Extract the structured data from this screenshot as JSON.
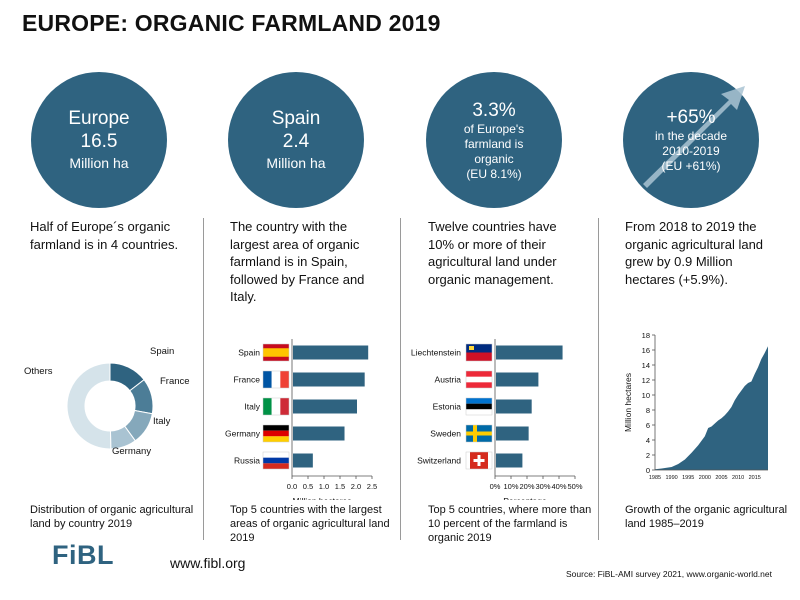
{
  "title": "EUROPE: ORGANIC FARMLAND 2019",
  "colors": {
    "circle": "#2f6380",
    "bar": "#2f6380",
    "pie": [
      "#2f6380",
      "#4c7d97",
      "#85a8bb",
      "#a9c3d2",
      "#d5e3ea"
    ]
  },
  "circles": {
    "europe": {
      "line1": "Europe",
      "line2": "16.5",
      "line3": "Million ha"
    },
    "spain": {
      "line1": "Spain",
      "line2": "2.4",
      "line3": "Million ha"
    },
    "share": {
      "line1": "3.3%",
      "line2": "of Europe's",
      "line3": "farmland is",
      "line4": "organic",
      "line5": "(EU 8.1%)"
    },
    "growth": {
      "line1": "+65%",
      "line2": "in the decade",
      "line3": "2010-2019",
      "line4": "(EU +61%)"
    }
  },
  "descriptions": {
    "col1": "Half of Europe´s organic farmland is in 4 countries.",
    "col2": "The country with the largest area of organic farmland is in Spain, followed by France and Italy.",
    "col3": "Twelve countries have 10% or more of their agricultural land under organic management.",
    "col4": "From 2018 to 2019 the organic agricultural land grew by 0.9 Million hectares (+5.9%)."
  },
  "footnotes": {
    "col1": "Distribution of organic agricultural land by country 2019",
    "col2": "Top 5 countries with the largest areas of organic agricultural land 2019",
    "col3": "Top 5 countries, where more than 10 percent of the farmland is organic 2019",
    "col4": "Growth of the organic agricultural land 1985–2019"
  },
  "logo": "FiBL",
  "url": "www.fibl.org",
  "source": "Source: FiBL-AMI survey 2021, www.organic-world.net",
  "chart_data": [
    {
      "type": "pie",
      "categories": [
        "Spain",
        "France",
        "Italy",
        "Germany",
        "Others"
      ],
      "values": [
        2.4,
        2.2,
        2.0,
        1.6,
        8.3
      ],
      "donut": true
    },
    {
      "type": "bar",
      "orientation": "horizontal",
      "categories": [
        "Spain",
        "France",
        "Italy",
        "Germany",
        "Russia"
      ],
      "values": [
        2.35,
        2.24,
        2.0,
        1.61,
        0.62
      ],
      "xlabel": "Million hectares",
      "xticks": [
        "0.0",
        "0.5",
        "1.0",
        "1.5",
        "2.0",
        "2.5"
      ],
      "xlim": [
        0,
        2.5
      ]
    },
    {
      "type": "bar",
      "orientation": "horizontal",
      "categories": [
        "Liechtenstein",
        "Austria",
        "Estonia",
        "Sweden",
        "Switzerland"
      ],
      "values": [
        41.6,
        26.5,
        22.3,
        20.4,
        16.5
      ],
      "xlabel": "Percentage",
      "xticks": [
        "0%",
        "10%",
        "20%",
        "30%",
        "40%",
        "50%"
      ],
      "xlim": [
        0,
        50
      ]
    },
    {
      "type": "area",
      "ylabel": "Million hectares",
      "ylim": [
        0,
        18
      ],
      "yticks": [
        "0",
        "2",
        "4",
        "6",
        "8",
        "10",
        "12",
        "14",
        "16",
        "18"
      ],
      "xticks": [
        "1985",
        "1990",
        "1995",
        "2000",
        "2005",
        "2010",
        "2015"
      ],
      "xlim": [
        1985,
        2019
      ],
      "x": [
        1985,
        1987,
        1990,
        1992,
        1994,
        1996,
        1998,
        2000,
        2001,
        2002,
        2003,
        2004,
        2005,
        2006,
        2007,
        2008,
        2009,
        2010,
        2011,
        2012,
        2013,
        2014,
        2015,
        2016,
        2017,
        2018,
        2019
      ],
      "values": [
        0.1,
        0.2,
        0.4,
        0.8,
        1.4,
        2.3,
        3.3,
        4.5,
        5.6,
        5.8,
        6.2,
        6.6,
        6.9,
        7.3,
        7.8,
        8.4,
        9.3,
        10.0,
        10.6,
        11.2,
        11.6,
        11.8,
        12.8,
        13.7,
        14.8,
        15.6,
        16.5
      ]
    }
  ]
}
